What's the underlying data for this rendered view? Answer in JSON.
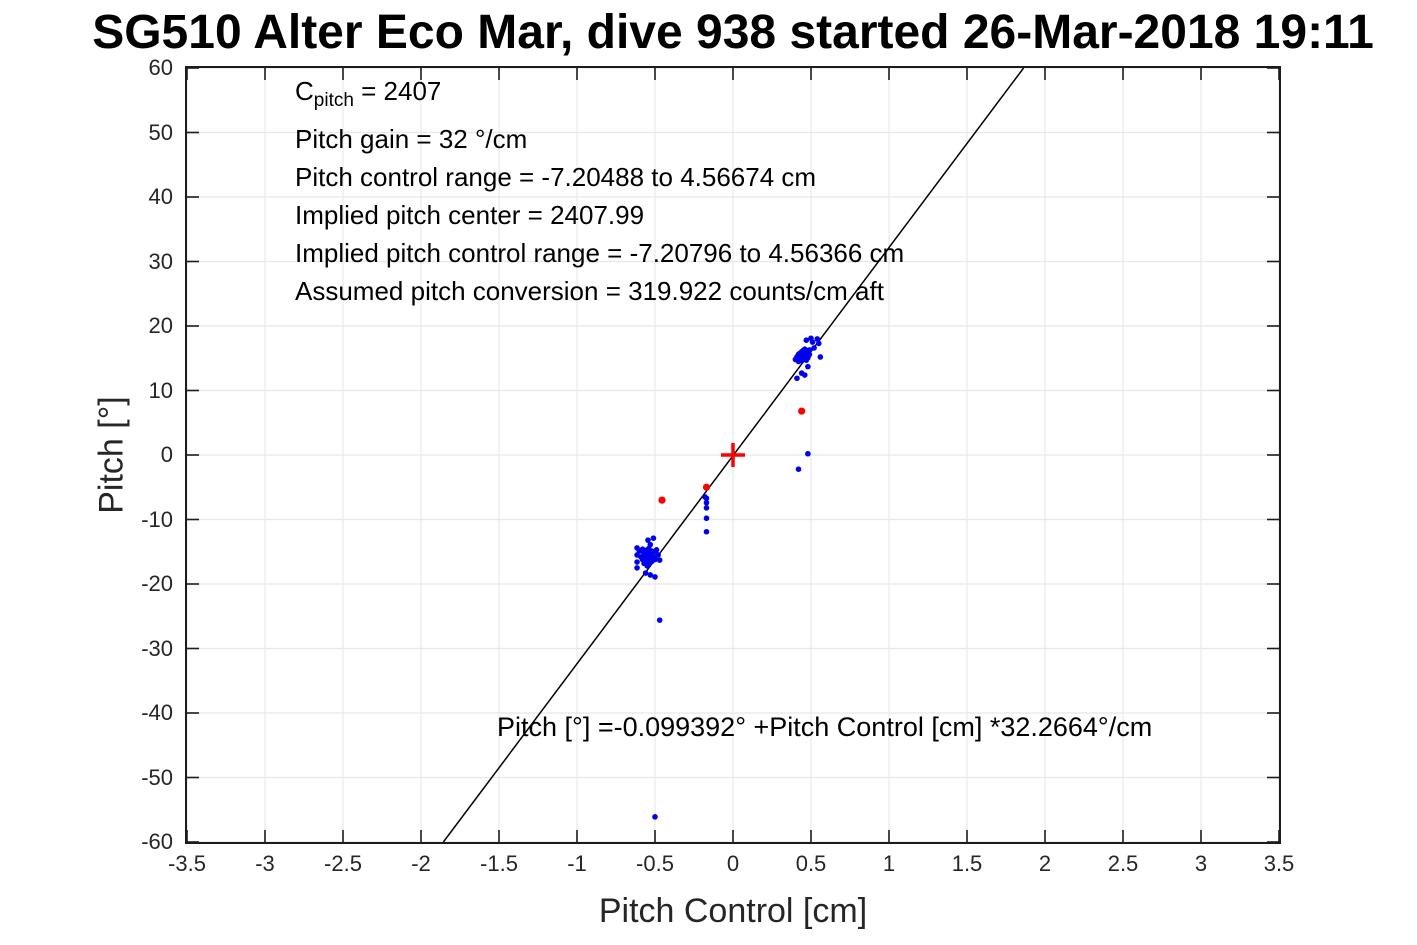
{
  "figure": {
    "title": "SG510 Alter Eco Mar, dive 938 started 26-Mar-2018 19:11"
  },
  "annotations": {
    "c_main": "C",
    "c_sub": "pitch",
    "c_rest": " = 2407",
    "lines": [
      "Pitch gain = 32 °/cm",
      "Pitch control range = -7.20488 to 4.56674 cm",
      "Implied pitch center = 2407.99",
      "Implied pitch control range = -7.20796 to 4.56366 cm",
      "Assumed pitch conversion = 319.922 counts/cm aft"
    ]
  },
  "chart_data": {
    "type": "scatter",
    "title": "SG510 Alter Eco Mar, dive 938 started 26-Mar-2018 19:11",
    "xlabel": "Pitch Control [cm]",
    "ylabel": "Pitch [°]",
    "xlim": [
      -3.5,
      3.5
    ],
    "ylim": [
      -60,
      60
    ],
    "grid": true,
    "legend_position": "none",
    "xticks": [
      {
        "v": -3.5,
        "label": "-3.5"
      },
      {
        "v": -3,
        "label": "-3"
      },
      {
        "v": -2.5,
        "label": "-2.5"
      },
      {
        "v": -2,
        "label": "-2"
      },
      {
        "v": -1.5,
        "label": "-1.5"
      },
      {
        "v": -1,
        "label": "-1"
      },
      {
        "v": -0.5,
        "label": "-0.5"
      },
      {
        "v": 0,
        "label": "0"
      },
      {
        "v": 0.5,
        "label": "0.5"
      },
      {
        "v": 1,
        "label": "1"
      },
      {
        "v": 1.5,
        "label": "1.5"
      },
      {
        "v": 2,
        "label": "2"
      },
      {
        "v": 2.5,
        "label": "2.5"
      },
      {
        "v": 3,
        "label": "3"
      },
      {
        "v": 3.5,
        "label": "3.5"
      }
    ],
    "yticks": [
      {
        "v": 60,
        "label": "60"
      },
      {
        "v": 50,
        "label": "50"
      },
      {
        "v": 40,
        "label": "40"
      },
      {
        "v": 30,
        "label": "30"
      },
      {
        "v": 20,
        "label": "20"
      },
      {
        "v": 10,
        "label": "10"
      },
      {
        "v": 0,
        "label": "0"
      },
      {
        "v": -10,
        "label": "-10"
      },
      {
        "v": -20,
        "label": "-20"
      },
      {
        "v": -30,
        "label": "-30"
      },
      {
        "v": -40,
        "label": "-40"
      },
      {
        "v": -50,
        "label": "-50"
      },
      {
        "v": -60,
        "label": "-60"
      }
    ],
    "series": [
      {
        "name": "dive-pitch-samples",
        "color": "#0000ee",
        "marker": "dot",
        "marker_radius": 2.8,
        "points": [
          [
            0.4,
            14.8
          ],
          [
            0.41,
            15.2
          ],
          [
            0.41,
            11.9
          ],
          [
            0.42,
            14.5
          ],
          [
            0.42,
            15.6
          ],
          [
            0.43,
            14.9
          ],
          [
            0.43,
            15.8
          ],
          [
            0.44,
            14.6
          ],
          [
            0.44,
            15.3
          ],
          [
            0.44,
            16.0
          ],
          [
            0.44,
            12.7
          ],
          [
            0.45,
            14.8
          ],
          [
            0.45,
            15.5
          ],
          [
            0.45,
            16.2
          ],
          [
            0.46,
            15.0
          ],
          [
            0.46,
            15.7
          ],
          [
            0.46,
            16.4
          ],
          [
            0.46,
            12.4
          ],
          [
            0.47,
            14.7
          ],
          [
            0.47,
            15.4
          ],
          [
            0.47,
            16.1
          ],
          [
            0.47,
            17.8
          ],
          [
            0.48,
            15.1
          ],
          [
            0.48,
            15.9
          ],
          [
            0.48,
            13.7
          ],
          [
            0.49,
            15.6
          ],
          [
            0.49,
            16.3
          ],
          [
            0.5,
            18.1
          ],
          [
            0.51,
            17.5
          ],
          [
            0.52,
            16.6
          ],
          [
            0.54,
            18.0
          ],
          [
            0.55,
            17.3
          ],
          [
            0.56,
            15.2
          ],
          [
            -0.615,
            -14.4
          ],
          [
            -0.615,
            -15.5
          ],
          [
            -0.615,
            -16.6
          ],
          [
            -0.615,
            -17.5
          ],
          [
            -0.6,
            -14.9
          ],
          [
            -0.59,
            -15.8
          ],
          [
            -0.58,
            -14.6
          ],
          [
            -0.58,
            -16.2
          ],
          [
            -0.57,
            -15.3
          ],
          [
            -0.57,
            -16.8
          ],
          [
            -0.56,
            -14.8
          ],
          [
            -0.56,
            -15.9
          ],
          [
            -0.56,
            -18.3
          ],
          [
            -0.55,
            -15.2
          ],
          [
            -0.55,
            -16.4
          ],
          [
            -0.55,
            -17.2
          ],
          [
            -0.54,
            -14.5
          ],
          [
            -0.54,
            -15.7
          ],
          [
            -0.54,
            -16.9
          ],
          [
            -0.545,
            -13.2
          ],
          [
            -0.53,
            -13.9
          ],
          [
            -0.53,
            -15.4
          ],
          [
            -0.53,
            -16.1
          ],
          [
            -0.53,
            -18.6
          ],
          [
            -0.52,
            -14.9
          ],
          [
            -0.52,
            -16.5
          ],
          [
            -0.51,
            -12.9
          ],
          [
            -0.51,
            -15.8
          ],
          [
            -0.5,
            -15.0
          ],
          [
            -0.5,
            -16.2
          ],
          [
            -0.5,
            -18.9
          ],
          [
            -0.49,
            -14.7
          ],
          [
            -0.48,
            -15.5
          ],
          [
            -0.47,
            -16.3
          ],
          [
            -0.18,
            -6.5
          ],
          [
            -0.17,
            -6.7
          ],
          [
            -0.17,
            -7.4
          ],
          [
            -0.17,
            -8.2
          ],
          [
            -0.17,
            -9.8
          ],
          [
            -0.17,
            -11.9
          ],
          [
            0.48,
            0.2
          ],
          [
            0.42,
            -2.2
          ],
          [
            -0.47,
            -25.6
          ],
          [
            -0.5,
            -56.1
          ]
        ]
      },
      {
        "name": "flagged-pitch-samples",
        "color": "#ff0000",
        "marker": "dot",
        "marker_radius": 3.6,
        "points": [
          [
            0.44,
            6.8
          ],
          [
            -0.455,
            -7.0
          ],
          [
            -0.17,
            -5.0
          ]
        ]
      },
      {
        "name": "implied-pitch-center-marker",
        "color": "#ff0000",
        "marker": "plus",
        "marker_radius": 12,
        "points": [
          [
            0,
            0
          ]
        ]
      }
    ],
    "fit_line": {
      "intercept": -0.099392,
      "slope": 32.2664,
      "color": "#000000",
      "label": "Pitch [°] =-0.099392° +Pitch Control [cm] *32.2664°/cm"
    },
    "annotation_text": [
      "C_pitch = 2407",
      "Pitch gain = 32 °/cm",
      "Pitch control range = -7.20488 to 4.56674 cm",
      "Implied pitch center = 2407.99",
      "Implied pitch control range = -7.20796 to 4.56366 cm",
      "Assumed pitch conversion = 319.922 counts/cm aft"
    ]
  }
}
